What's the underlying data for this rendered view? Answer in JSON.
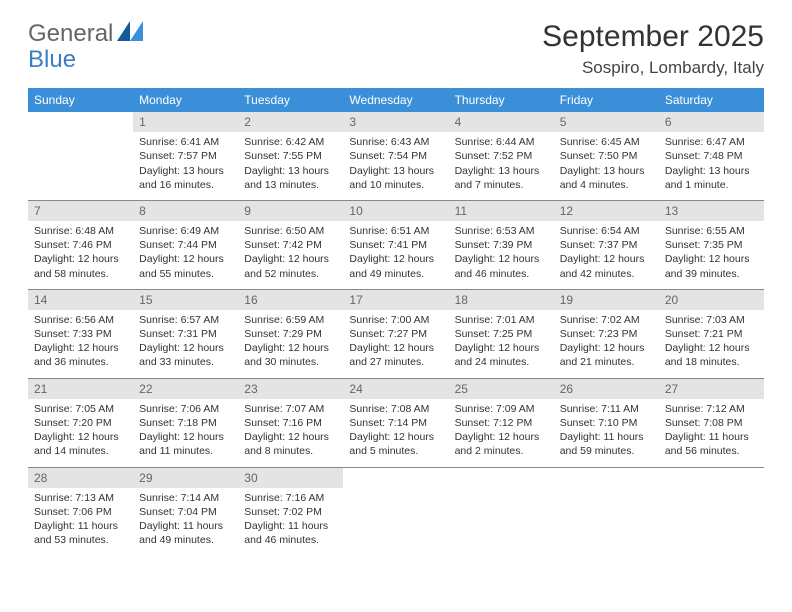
{
  "brand": {
    "part1": "General",
    "part2": "Blue"
  },
  "title": "September 2025",
  "location": "Sospiro, Lombardy, Italy",
  "colors": {
    "header_bg": "#3a8fd8",
    "header_fg": "#ffffff",
    "daynum_bg": "#e4e4e4",
    "rule": "#888888",
    "brand_blue": "#3a7fc4"
  },
  "typography": {
    "title_fontsize": 30,
    "location_fontsize": 17,
    "th_fontsize": 12,
    "cell_fontsize": 10.5
  },
  "weekdays": [
    "Sunday",
    "Monday",
    "Tuesday",
    "Wednesday",
    "Thursday",
    "Friday",
    "Saturday"
  ],
  "weeks": [
    [
      null,
      {
        "n": "1",
        "sr": "Sunrise: 6:41 AM",
        "ss": "Sunset: 7:57 PM",
        "dl": "Daylight: 13 hours and 16 minutes."
      },
      {
        "n": "2",
        "sr": "Sunrise: 6:42 AM",
        "ss": "Sunset: 7:55 PM",
        "dl": "Daylight: 13 hours and 13 minutes."
      },
      {
        "n": "3",
        "sr": "Sunrise: 6:43 AM",
        "ss": "Sunset: 7:54 PM",
        "dl": "Daylight: 13 hours and 10 minutes."
      },
      {
        "n": "4",
        "sr": "Sunrise: 6:44 AM",
        "ss": "Sunset: 7:52 PM",
        "dl": "Daylight: 13 hours and 7 minutes."
      },
      {
        "n": "5",
        "sr": "Sunrise: 6:45 AM",
        "ss": "Sunset: 7:50 PM",
        "dl": "Daylight: 13 hours and 4 minutes."
      },
      {
        "n": "6",
        "sr": "Sunrise: 6:47 AM",
        "ss": "Sunset: 7:48 PM",
        "dl": "Daylight: 13 hours and 1 minute."
      }
    ],
    [
      {
        "n": "7",
        "sr": "Sunrise: 6:48 AM",
        "ss": "Sunset: 7:46 PM",
        "dl": "Daylight: 12 hours and 58 minutes."
      },
      {
        "n": "8",
        "sr": "Sunrise: 6:49 AM",
        "ss": "Sunset: 7:44 PM",
        "dl": "Daylight: 12 hours and 55 minutes."
      },
      {
        "n": "9",
        "sr": "Sunrise: 6:50 AM",
        "ss": "Sunset: 7:42 PM",
        "dl": "Daylight: 12 hours and 52 minutes."
      },
      {
        "n": "10",
        "sr": "Sunrise: 6:51 AM",
        "ss": "Sunset: 7:41 PM",
        "dl": "Daylight: 12 hours and 49 minutes."
      },
      {
        "n": "11",
        "sr": "Sunrise: 6:53 AM",
        "ss": "Sunset: 7:39 PM",
        "dl": "Daylight: 12 hours and 46 minutes."
      },
      {
        "n": "12",
        "sr": "Sunrise: 6:54 AM",
        "ss": "Sunset: 7:37 PM",
        "dl": "Daylight: 12 hours and 42 minutes."
      },
      {
        "n": "13",
        "sr": "Sunrise: 6:55 AM",
        "ss": "Sunset: 7:35 PM",
        "dl": "Daylight: 12 hours and 39 minutes."
      }
    ],
    [
      {
        "n": "14",
        "sr": "Sunrise: 6:56 AM",
        "ss": "Sunset: 7:33 PM",
        "dl": "Daylight: 12 hours and 36 minutes."
      },
      {
        "n": "15",
        "sr": "Sunrise: 6:57 AM",
        "ss": "Sunset: 7:31 PM",
        "dl": "Daylight: 12 hours and 33 minutes."
      },
      {
        "n": "16",
        "sr": "Sunrise: 6:59 AM",
        "ss": "Sunset: 7:29 PM",
        "dl": "Daylight: 12 hours and 30 minutes."
      },
      {
        "n": "17",
        "sr": "Sunrise: 7:00 AM",
        "ss": "Sunset: 7:27 PM",
        "dl": "Daylight: 12 hours and 27 minutes."
      },
      {
        "n": "18",
        "sr": "Sunrise: 7:01 AM",
        "ss": "Sunset: 7:25 PM",
        "dl": "Daylight: 12 hours and 24 minutes."
      },
      {
        "n": "19",
        "sr": "Sunrise: 7:02 AM",
        "ss": "Sunset: 7:23 PM",
        "dl": "Daylight: 12 hours and 21 minutes."
      },
      {
        "n": "20",
        "sr": "Sunrise: 7:03 AM",
        "ss": "Sunset: 7:21 PM",
        "dl": "Daylight: 12 hours and 18 minutes."
      }
    ],
    [
      {
        "n": "21",
        "sr": "Sunrise: 7:05 AM",
        "ss": "Sunset: 7:20 PM",
        "dl": "Daylight: 12 hours and 14 minutes."
      },
      {
        "n": "22",
        "sr": "Sunrise: 7:06 AM",
        "ss": "Sunset: 7:18 PM",
        "dl": "Daylight: 12 hours and 11 minutes."
      },
      {
        "n": "23",
        "sr": "Sunrise: 7:07 AM",
        "ss": "Sunset: 7:16 PM",
        "dl": "Daylight: 12 hours and 8 minutes."
      },
      {
        "n": "24",
        "sr": "Sunrise: 7:08 AM",
        "ss": "Sunset: 7:14 PM",
        "dl": "Daylight: 12 hours and 5 minutes."
      },
      {
        "n": "25",
        "sr": "Sunrise: 7:09 AM",
        "ss": "Sunset: 7:12 PM",
        "dl": "Daylight: 12 hours and 2 minutes."
      },
      {
        "n": "26",
        "sr": "Sunrise: 7:11 AM",
        "ss": "Sunset: 7:10 PM",
        "dl": "Daylight: 11 hours and 59 minutes."
      },
      {
        "n": "27",
        "sr": "Sunrise: 7:12 AM",
        "ss": "Sunset: 7:08 PM",
        "dl": "Daylight: 11 hours and 56 minutes."
      }
    ],
    [
      {
        "n": "28",
        "sr": "Sunrise: 7:13 AM",
        "ss": "Sunset: 7:06 PM",
        "dl": "Daylight: 11 hours and 53 minutes."
      },
      {
        "n": "29",
        "sr": "Sunrise: 7:14 AM",
        "ss": "Sunset: 7:04 PM",
        "dl": "Daylight: 11 hours and 49 minutes."
      },
      {
        "n": "30",
        "sr": "Sunrise: 7:16 AM",
        "ss": "Sunset: 7:02 PM",
        "dl": "Daylight: 11 hours and 46 minutes."
      },
      null,
      null,
      null,
      null
    ]
  ]
}
